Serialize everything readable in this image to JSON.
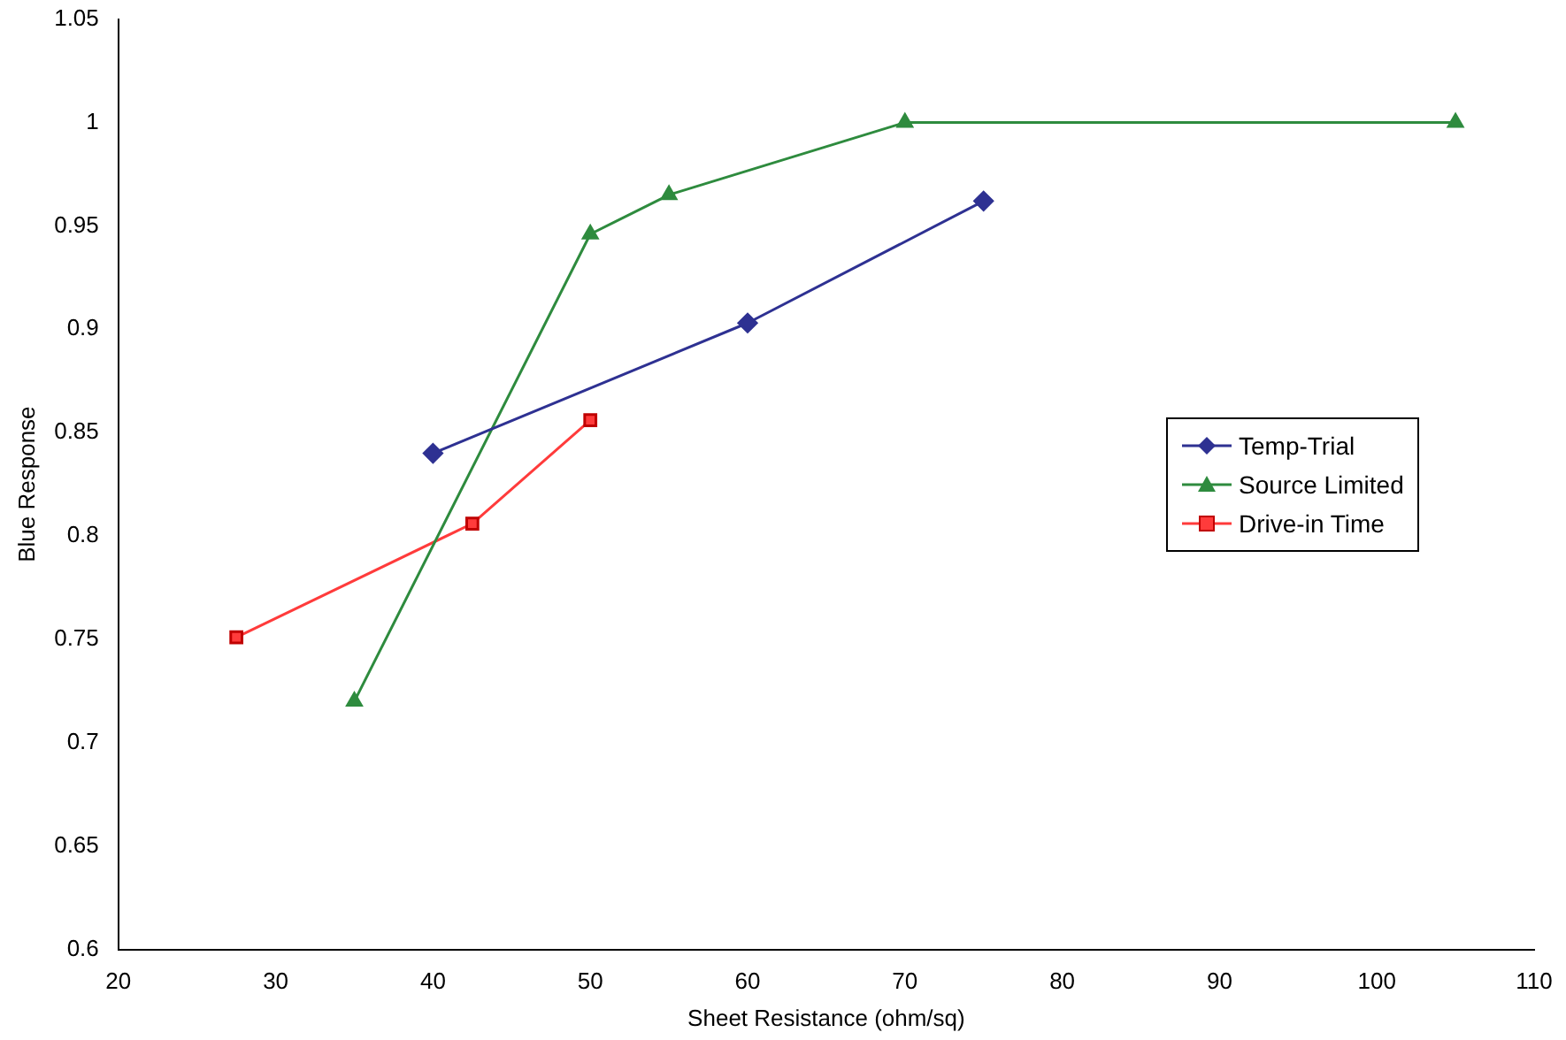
{
  "chart_data": {
    "type": "line",
    "xlabel": "Sheet Resistance (ohm/sq)",
    "ylabel": "Blue Response",
    "xlim": [
      20,
      110
    ],
    "xticks": [
      20,
      30,
      40,
      50,
      60,
      70,
      80,
      90,
      100,
      110
    ],
    "ylim": [
      0.6,
      1.05
    ],
    "yticks": [
      0.6,
      0.65,
      0.7,
      0.75,
      0.8,
      0.85,
      0.9,
      0.95,
      1,
      1.05
    ],
    "grid": false,
    "legend": "right",
    "series": [
      {
        "name": "Temp-Trial",
        "color": "#2e3192",
        "marker": "diamond",
        "x": [
          40,
          60,
          75
        ],
        "values": [
          0.84,
          0.903,
          0.962
        ]
      },
      {
        "name": "Source Limited",
        "color": "#2e8b3e",
        "marker": "triangle",
        "x": [
          35,
          50,
          55,
          70,
          105
        ],
        "values": [
          0.72,
          0.946,
          0.965,
          1,
          1
        ]
      },
      {
        "name": "Drive-in Time",
        "color": "#ff3b3b",
        "marker": "square",
        "x": [
          27.5,
          42.5,
          50
        ],
        "values": [
          0.751,
          0.806,
          0.856
        ]
      }
    ]
  }
}
